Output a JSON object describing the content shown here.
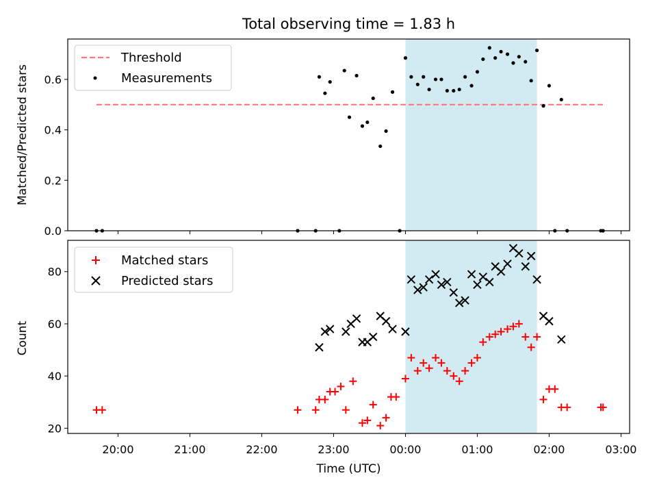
{
  "chart_data": [
    {
      "type": "scatter",
      "title": "Total observing time = 1.83 h",
      "xlabel": "",
      "ylabel": "Matched/Predicted stars",
      "ylim": [
        0,
        0.76
      ],
      "yticks": [
        "0.0",
        "0.2",
        "0.4",
        "0.6"
      ],
      "highlight_span": [
        0.0,
        1.83
      ],
      "legend_position": "upper-left",
      "threshold": {
        "name": "Threshold",
        "value": 0.5,
        "x_range": [
          -4.3,
          2.75
        ],
        "color": "#ff7777",
        "style": "dashed"
      },
      "series": [
        {
          "name": "Measurements",
          "color": "#000000",
          "marker": "dot",
          "points": [
            [
              -4.3,
              0.0
            ],
            [
              -4.22,
              0.0
            ],
            [
              -1.5,
              0.0
            ],
            [
              -1.25,
              0.0
            ],
            [
              -1.2,
              0.61
            ],
            [
              -1.12,
              0.545
            ],
            [
              -1.05,
              0.59
            ],
            [
              -0.92,
              0.0
            ],
            [
              -0.85,
              0.635
            ],
            [
              -0.78,
              0.45
            ],
            [
              -0.68,
              0.615
            ],
            [
              -0.6,
              0.415
            ],
            [
              -0.53,
              0.43
            ],
            [
              -0.45,
              0.525
            ],
            [
              -0.35,
              0.335
            ],
            [
              -0.27,
              0.395
            ],
            [
              -0.18,
              0.55
            ],
            [
              -0.08,
              0.0
            ],
            [
              0.0,
              0.685
            ],
            [
              0.08,
              0.61
            ],
            [
              0.17,
              0.58
            ],
            [
              0.25,
              0.61
            ],
            [
              0.33,
              0.56
            ],
            [
              0.42,
              0.6
            ],
            [
              0.5,
              0.6
            ],
            [
              0.58,
              0.555
            ],
            [
              0.67,
              0.555
            ],
            [
              0.75,
              0.56
            ],
            [
              0.83,
              0.61
            ],
            [
              0.92,
              0.575
            ],
            [
              1.0,
              0.63
            ],
            [
              1.08,
              0.68
            ],
            [
              1.17,
              0.725
            ],
            [
              1.25,
              0.685
            ],
            [
              1.33,
              0.71
            ],
            [
              1.42,
              0.7
            ],
            [
              1.5,
              0.665
            ],
            [
              1.58,
              0.69
            ],
            [
              1.67,
              0.67
            ],
            [
              1.75,
              0.595
            ],
            [
              1.83,
              0.715
            ],
            [
              1.92,
              0.495
            ],
            [
              2.0,
              0.575
            ],
            [
              2.08,
              0.0
            ],
            [
              2.17,
              0.52
            ],
            [
              2.25,
              0.0
            ],
            [
              2.72,
              0.0
            ],
            [
              2.75,
              0.0
            ]
          ]
        }
      ]
    },
    {
      "type": "scatter",
      "title": "",
      "xlabel": "Time (UTC)",
      "ylabel": "Count",
      "ylim": [
        18,
        92
      ],
      "yticks": [
        "20",
        "40",
        "60",
        "80"
      ],
      "xticks": [
        "20:00",
        "21:00",
        "22:00",
        "23:00",
        "00:00",
        "01:00",
        "02:00",
        "03:00"
      ],
      "xlim": [
        -4.7,
        3.12
      ],
      "highlight_span": [
        0.0,
        1.83
      ],
      "legend_position": "upper-left",
      "series": [
        {
          "name": "Matched stars",
          "color": "#ff0000",
          "marker": "plus",
          "points": [
            [
              -4.3,
              27
            ],
            [
              -4.22,
              27
            ],
            [
              -1.5,
              27
            ],
            [
              -1.25,
              27
            ],
            [
              -1.2,
              31
            ],
            [
              -1.12,
              31
            ],
            [
              -1.05,
              34
            ],
            [
              -0.98,
              34
            ],
            [
              -0.9,
              36
            ],
            [
              -0.83,
              27
            ],
            [
              -0.73,
              38
            ],
            [
              -0.6,
              22
            ],
            [
              -0.53,
              23
            ],
            [
              -0.45,
              29
            ],
            [
              -0.35,
              21
            ],
            [
              -0.27,
              24
            ],
            [
              -0.2,
              32
            ],
            [
              -0.13,
              32
            ],
            [
              0.0,
              39
            ],
            [
              0.08,
              47
            ],
            [
              0.17,
              42
            ],
            [
              0.25,
              45
            ],
            [
              0.33,
              43
            ],
            [
              0.42,
              47
            ],
            [
              0.5,
              45
            ],
            [
              0.58,
              42
            ],
            [
              0.67,
              40
            ],
            [
              0.75,
              38
            ],
            [
              0.83,
              42
            ],
            [
              0.92,
              45
            ],
            [
              1.0,
              47
            ],
            [
              1.08,
              53
            ],
            [
              1.17,
              55
            ],
            [
              1.25,
              56
            ],
            [
              1.33,
              57
            ],
            [
              1.42,
              58
            ],
            [
              1.5,
              59
            ],
            [
              1.58,
              60
            ],
            [
              1.67,
              55
            ],
            [
              1.75,
              51
            ],
            [
              1.83,
              55
            ],
            [
              1.92,
              31
            ],
            [
              2.0,
              35
            ],
            [
              2.08,
              35
            ],
            [
              2.17,
              28
            ],
            [
              2.25,
              28
            ],
            [
              2.72,
              28
            ],
            [
              2.75,
              28
            ]
          ]
        },
        {
          "name": "Predicted stars",
          "color": "#000000",
          "marker": "x",
          "points": [
            [
              -1.2,
              51
            ],
            [
              -1.12,
              57
            ],
            [
              -1.05,
              58
            ],
            [
              -0.83,
              57
            ],
            [
              -0.76,
              60
            ],
            [
              -0.68,
              62
            ],
            [
              -0.6,
              53
            ],
            [
              -0.53,
              53
            ],
            [
              -0.45,
              55
            ],
            [
              -0.35,
              63
            ],
            [
              -0.27,
              61
            ],
            [
              -0.18,
              58
            ],
            [
              0.0,
              57
            ],
            [
              0.08,
              77
            ],
            [
              0.17,
              73
            ],
            [
              0.25,
              74
            ],
            [
              0.33,
              77
            ],
            [
              0.42,
              79
            ],
            [
              0.5,
              75
            ],
            [
              0.58,
              76
            ],
            [
              0.67,
              72
            ],
            [
              0.75,
              68
            ],
            [
              0.83,
              69
            ],
            [
              0.92,
              79
            ],
            [
              1.0,
              75
            ],
            [
              1.08,
              78
            ],
            [
              1.17,
              76
            ],
            [
              1.25,
              82
            ],
            [
              1.33,
              80
            ],
            [
              1.42,
              83
            ],
            [
              1.5,
              89
            ],
            [
              1.58,
              87
            ],
            [
              1.67,
              82
            ],
            [
              1.75,
              86
            ],
            [
              1.83,
              77
            ],
            [
              1.92,
              63
            ],
            [
              2.0,
              61
            ],
            [
              2.17,
              54
            ]
          ]
        }
      ]
    }
  ],
  "colors": {
    "highlight_fill": "#add8e6",
    "matched": "#ff0000",
    "predicted": "#000000",
    "threshold": "#ff7777"
  }
}
